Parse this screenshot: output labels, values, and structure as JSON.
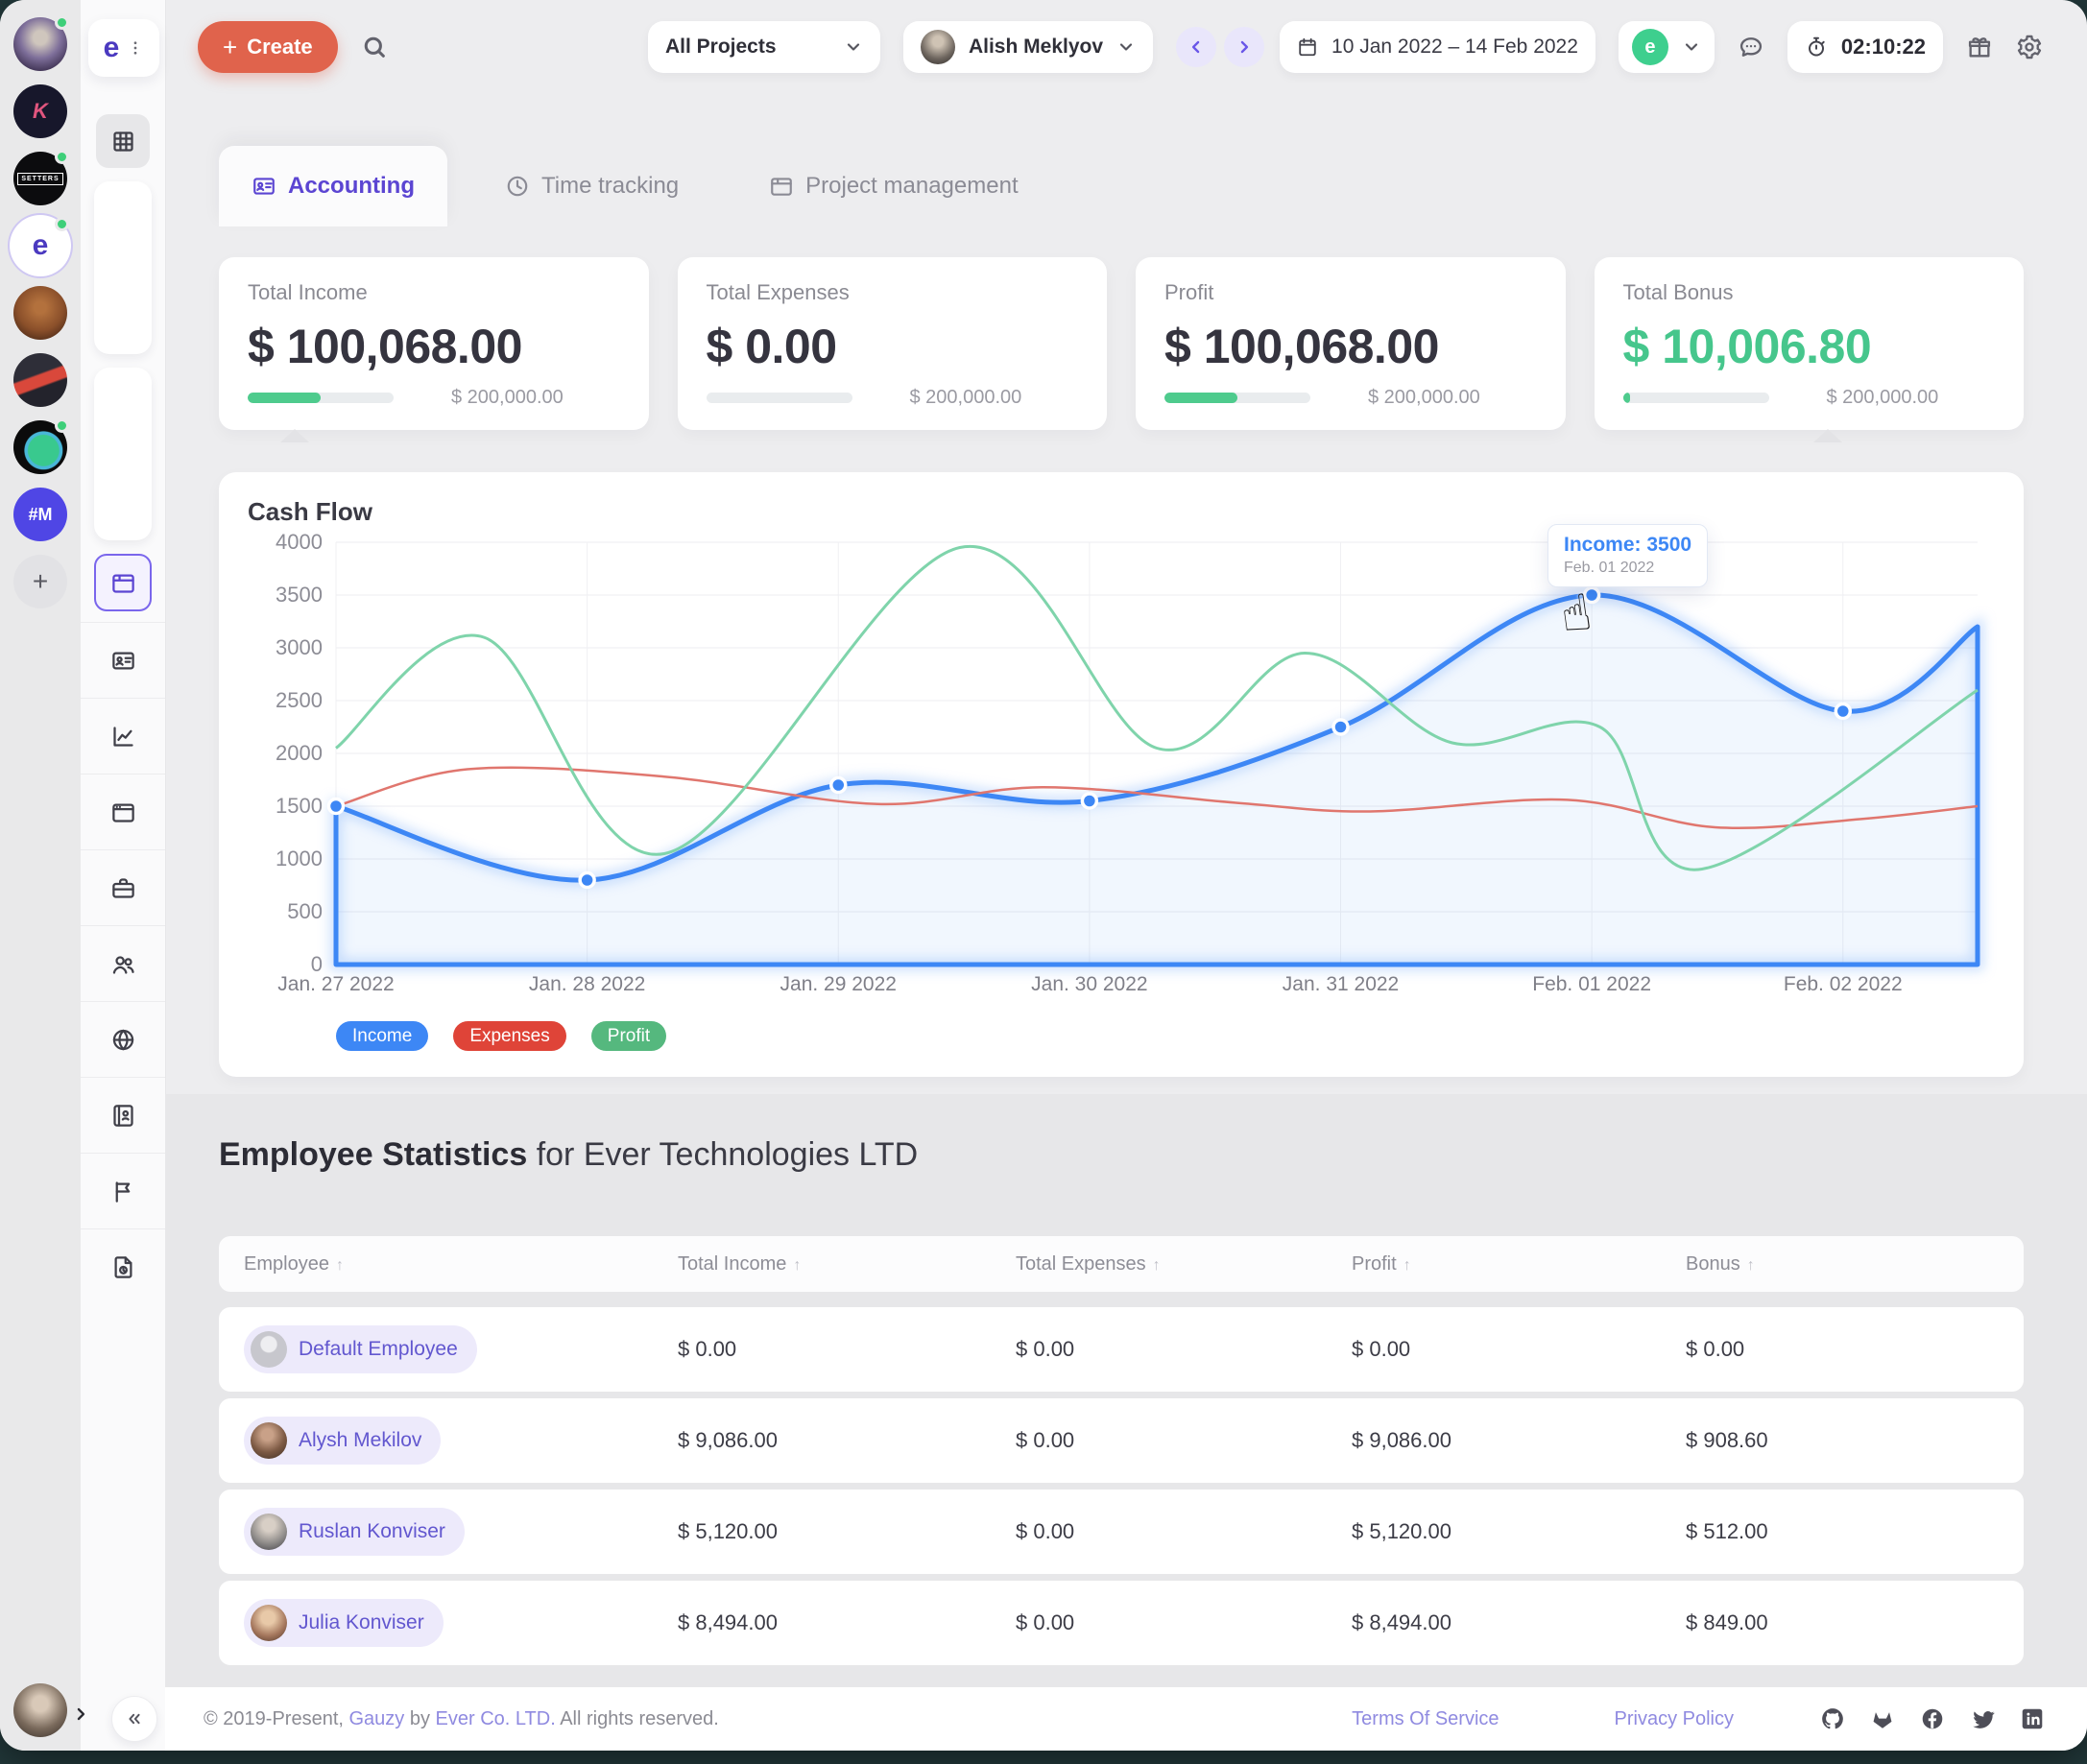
{
  "frame": {
    "desktop_bg": "#22383a"
  },
  "workspace_rail": {
    "avatars": [
      {
        "kind": "photo-doll",
        "label": "",
        "dot": true,
        "selected": false
      },
      {
        "kind": "logo-k",
        "label": "K",
        "dot": false,
        "selected": false
      },
      {
        "kind": "logo-setters",
        "label": "SETTERS",
        "dot": true,
        "selected": false
      },
      {
        "kind": "logo-ever",
        "label": "e",
        "dot": true,
        "selected": true
      },
      {
        "kind": "photo-sepia",
        "label": "",
        "dot": false,
        "selected": false
      },
      {
        "kind": "photo-banner",
        "label": "",
        "dot": false,
        "selected": false
      },
      {
        "kind": "logo-bird",
        "label": "",
        "dot": true,
        "selected": false
      },
      {
        "kind": "tag-m",
        "label": "#M",
        "dot": false,
        "selected": false
      },
      {
        "kind": "add",
        "label": "+",
        "dot": false,
        "selected": false
      }
    ],
    "bottom_avatar": {
      "kind": "photo-user",
      "label": ""
    }
  },
  "module_rail": {
    "items": [
      {
        "icon": "grid",
        "state": "muted"
      },
      {
        "icon": "plus-circle",
        "state": "card"
      },
      {
        "icon": "focus",
        "state": "card red"
      },
      {
        "icon": "module-window",
        "state": "selected"
      },
      {
        "icon": "id-card",
        "state": ""
      },
      {
        "icon": "chart-line",
        "state": ""
      },
      {
        "icon": "window-top",
        "state": ""
      },
      {
        "icon": "briefcase",
        "state": ""
      },
      {
        "icon": "users",
        "state": ""
      },
      {
        "icon": "globe",
        "state": ""
      },
      {
        "icon": "contact-book",
        "state": ""
      },
      {
        "icon": "flag",
        "state": ""
      },
      {
        "icon": "file-clock",
        "state": ""
      }
    ]
  },
  "header": {
    "logo_letter": "e",
    "create_label": "Create",
    "projects_label": "All Projects",
    "user_name": "Alish Meklyov",
    "date_range": "10 Jan 2022 – 14 Feb 2022",
    "org_letter": "e",
    "timer": "02:10:22"
  },
  "tabs": [
    {
      "label": "Accounting",
      "icon": "id-card",
      "active": true
    },
    {
      "label": "Time tracking",
      "icon": "clock",
      "active": false
    },
    {
      "label": "Project management",
      "icon": "module-window",
      "active": false
    }
  ],
  "kpi_cards": [
    {
      "label": "Total Income",
      "value": "$ 100,068.00",
      "max": "$ 200,000.00",
      "progress": 50,
      "value_color": "#35343f",
      "caret": true
    },
    {
      "label": "Total Expenses",
      "value": "$ 0.00",
      "max": "$ 200,000.00",
      "progress": 0,
      "value_color": "#35343f",
      "caret": false
    },
    {
      "label": "Profit",
      "value": "$ 100,068.00",
      "max": "$ 200,000.00",
      "progress": 50,
      "value_color": "#35343f",
      "caret": false
    },
    {
      "label": "Total Bonus",
      "value": "$ 10,006.80",
      "max": "$ 200,000.00",
      "progress": 5,
      "value_color": "#46c68c",
      "caret": true
    }
  ],
  "chart_data": {
    "type": "line",
    "title": "Cash Flow",
    "x_labels": [
      "Jan. 27 2022",
      "Jan. 28 2022",
      "Jan. 29 2022",
      "Jan. 30 2022",
      "Jan. 31 2022",
      "Feb. 01 2022",
      "Feb. 02 2022"
    ],
    "ylim": [
      0,
      4000
    ],
    "ytick_step": 500,
    "grid": true,
    "legend_position": "bottom-left",
    "series": [
      {
        "name": "Income",
        "color": "#3d87f5",
        "type": "area-glow",
        "points": [
          [
            0,
            1500
          ],
          [
            0.153,
            800
          ],
          [
            0.306,
            1700
          ],
          [
            0.459,
            1550
          ],
          [
            0.612,
            2250
          ],
          [
            0.765,
            3500
          ],
          [
            0.918,
            2400
          ],
          [
            1,
            3200
          ]
        ],
        "marker_count": 7
      },
      {
        "name": "Expenses",
        "color": "#e0766e",
        "type": "line",
        "points": [
          [
            0,
            1500
          ],
          [
            0.08,
            1850
          ],
          [
            0.2,
            1780
          ],
          [
            0.33,
            1520
          ],
          [
            0.43,
            1680
          ],
          [
            0.55,
            1530
          ],
          [
            0.63,
            1450
          ],
          [
            0.75,
            1560
          ],
          [
            0.84,
            1300
          ],
          [
            0.93,
            1380
          ],
          [
            1,
            1500
          ]
        ],
        "marker_count": 0
      },
      {
        "name": "Profit",
        "color": "#7fd4ab",
        "type": "line",
        "points": [
          [
            0,
            2050
          ],
          [
            0.09,
            3100
          ],
          [
            0.2,
            1050
          ],
          [
            0.38,
            3950
          ],
          [
            0.5,
            2050
          ],
          [
            0.59,
            2950
          ],
          [
            0.68,
            2100
          ],
          [
            0.77,
            2250
          ],
          [
            0.83,
            900
          ],
          [
            1,
            2600
          ]
        ],
        "marker_count": 0
      }
    ],
    "legend": [
      {
        "label": "Income",
        "color": "#3d87f5"
      },
      {
        "label": "Expenses",
        "color": "#df4438"
      },
      {
        "label": "Profit",
        "color": "#55b87e"
      }
    ],
    "tooltip": {
      "label": "Income: 3500",
      "date": "Feb. 01 2022",
      "value": 3500,
      "series": "Income",
      "x_label": "Feb. 01 2022"
    }
  },
  "employee_section": {
    "heading_bold": "Employee Statistics",
    "heading_rest": " for Ever Technologies LTD",
    "columns": [
      "Employee",
      "Total Income",
      "Total Expenses",
      "Profit",
      "Bonus"
    ],
    "rows": [
      {
        "name": "Default Employee",
        "avatar": "placeholder",
        "income": "$ 0.00",
        "expenses": "$ 0.00",
        "profit": "$ 0.00",
        "bonus": "$ 0.00"
      },
      {
        "name": "Alysh Mekilov",
        "avatar": "photo-a",
        "income": "$ 9,086.00",
        "expenses": "$ 0.00",
        "profit": "$ 9,086.00",
        "bonus": "$ 908.60"
      },
      {
        "name": "Ruslan Konviser",
        "avatar": "photo-b",
        "income": "$ 5,120.00",
        "expenses": "$ 0.00",
        "profit": "$ 5,120.00",
        "bonus": "$ 512.00"
      },
      {
        "name": "Julia Konviser",
        "avatar": "photo-c",
        "income": "$ 8,494.00",
        "expenses": "$ 0.00",
        "profit": "$ 8,494.00",
        "bonus": "$ 849.00"
      }
    ]
  },
  "footer": {
    "copyright_prefix": "© 2019-Present, ",
    "brand": "Gauzy",
    "middle": " by ",
    "company": "Ever Co. LTD.",
    "suffix": " All rights reserved.",
    "links": [
      {
        "label": "Terms Of Service"
      },
      {
        "label": "Privacy Policy"
      }
    ],
    "social": [
      "github",
      "gitlab",
      "facebook",
      "twitter",
      "linkedin"
    ]
  },
  "colors": {
    "accent": "#5b45d2",
    "create_button": "#e0634c",
    "success_green": "#4ecb8d",
    "income_blue": "#3d87f5",
    "expenses_red": "#df4438",
    "profit_green": "#55b87e"
  }
}
